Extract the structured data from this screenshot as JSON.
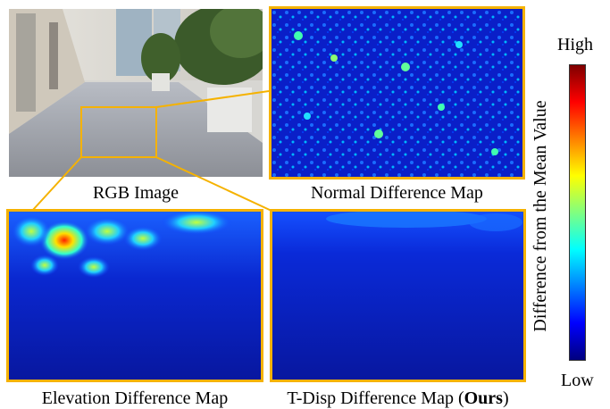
{
  "panels": {
    "rgb": {
      "caption": "RGB Image"
    },
    "normal": {
      "caption": "Normal Difference Map"
    },
    "elevation": {
      "caption": "Elevation Difference Map"
    },
    "tdisp": {
      "caption_main": "T-Disp Difference Map (",
      "caption_bold": "Ours",
      "caption_end": ")"
    }
  },
  "colorbar": {
    "title": "Difference from the Mean Value",
    "high_label": "High",
    "low_label": "Low",
    "stops": [
      "#00007f",
      "#0000ff",
      "#0080ff",
      "#00ffff",
      "#80ff80",
      "#ffff00",
      "#ff8000",
      "#ff0000",
      "#7f0000"
    ]
  },
  "colors": {
    "frame": "#f5b200",
    "map_base": "#0a1ab4"
  }
}
